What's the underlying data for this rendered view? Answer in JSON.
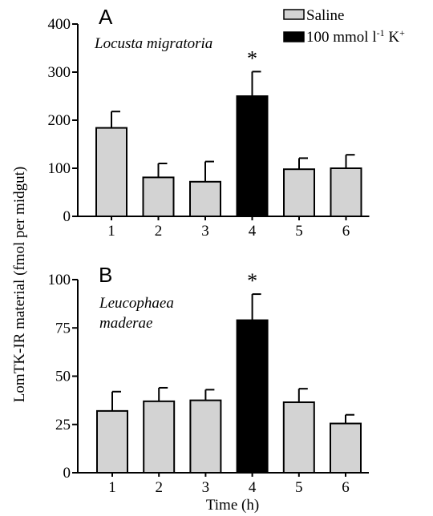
{
  "ylabel": "LomTK-IR material (fmol per midgut)",
  "xlabel": "Time (h)",
  "legend": {
    "placement": "top-right",
    "items": [
      {
        "label": "Saline",
        "color": "#d3d3d3"
      },
      {
        "label_main": "100 mmol l",
        "label_sup1": "-1",
        "label_mid": " K",
        "label_sup2": "+",
        "color": "#000000"
      }
    ]
  },
  "chart_data": [
    {
      "type": "bar",
      "panel_label": "A",
      "species": "Locusta migratoria",
      "categories": [
        "1",
        "2",
        "3",
        "4",
        "5",
        "6"
      ],
      "values": [
        184,
        81,
        72,
        250,
        98,
        100
      ],
      "errors": [
        34,
        29,
        42,
        51,
        23,
        28
      ],
      "series_index": [
        0,
        0,
        0,
        1,
        0,
        0
      ],
      "significance": [
        "",
        "",
        "",
        "*",
        "",
        ""
      ],
      "ylim": [
        0,
        400
      ],
      "yticks": [
        "0",
        "100",
        "200",
        "300",
        "400"
      ],
      "grid": false
    },
    {
      "type": "bar",
      "panel_label": "B",
      "species_line1": "Leucophaea",
      "species_line2": "maderae",
      "categories": [
        "1",
        "2",
        "3",
        "4",
        "5",
        "6"
      ],
      "values": [
        32,
        37,
        37.5,
        79,
        36.5,
        25.5
      ],
      "errors": [
        10,
        7,
        5.5,
        13.5,
        7,
        4.5
      ],
      "series_index": [
        0,
        0,
        0,
        1,
        0,
        0
      ],
      "significance": [
        "",
        "",
        "",
        "*",
        "",
        ""
      ],
      "ylim": [
        0,
        100
      ],
      "yticks": [
        "0",
        "25",
        "50",
        "75",
        "100"
      ],
      "grid": false
    }
  ]
}
